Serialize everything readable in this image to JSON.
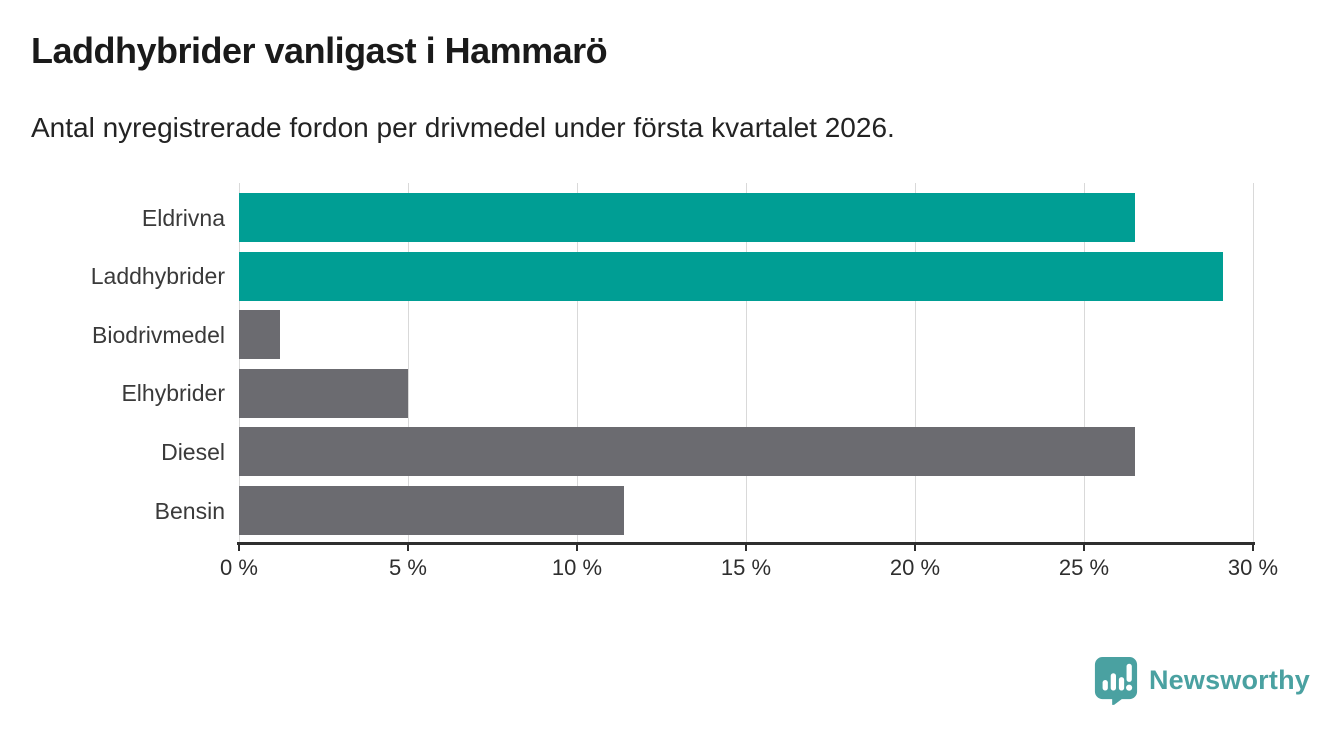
{
  "header": {
    "title": "Laddhybrider vanligast i Hammarö",
    "subtitle": "Antal nyregistrerade fordon per drivmedel under första kvartalet 2026."
  },
  "chart_data": {
    "type": "bar",
    "orientation": "horizontal",
    "title": "Laddhybrider vanligast i Hammarö",
    "subtitle": "Antal nyregistrerade fordon per drivmedel under första kvartalet 2026.",
    "categories": [
      "Eldrivna",
      "Laddhybrider",
      "Biodrivmedel",
      "Elhybrider",
      "Diesel",
      "Bensin"
    ],
    "values": [
      26.5,
      29.1,
      1.2,
      5.0,
      26.5,
      11.4
    ],
    "unit": "%",
    "bar_colors": [
      "#009e94",
      "#009e94",
      "#6b6b70",
      "#6b6b70",
      "#6b6b70",
      "#6b6b70"
    ],
    "accent_color": "#009e94",
    "neutral_color": "#6b6b70",
    "xlim": [
      0,
      30
    ],
    "x_ticks": [
      0,
      5,
      10,
      15,
      20,
      25,
      30
    ],
    "x_tick_labels": [
      "0 %",
      "5 %",
      "10 %",
      "15 %",
      "20 %",
      "25 %",
      "30 %"
    ],
    "grid": true,
    "gridline_color": "#d9d9d9",
    "axis_color": "#2e2e2e",
    "legend": "none"
  },
  "footer": {
    "brand": "Newsworthy",
    "brand_color": "#4aa1a1"
  }
}
